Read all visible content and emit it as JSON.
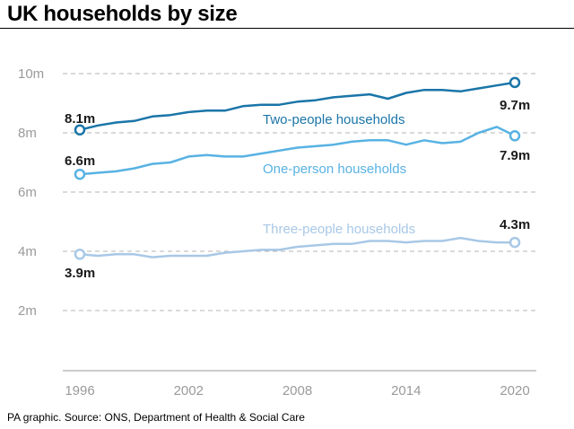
{
  "title": "UK households by size",
  "source": "PA graphic. Source: ONS, Department of Health & Social Care",
  "chart_data": {
    "type": "line",
    "title": "UK households by size",
    "xlabel": "",
    "ylabel": "",
    "xlim": [
      1996,
      2020
    ],
    "ylim": [
      0,
      10
    ],
    "x_ticks": [
      "1996",
      "2002",
      "2008",
      "2014",
      "2020"
    ],
    "y_ticks": [
      "10m",
      "8m",
      "6m",
      "4m",
      "2m"
    ],
    "grid": true,
    "x": [
      1996,
      1997,
      1998,
      1999,
      2000,
      2001,
      2002,
      2003,
      2004,
      2005,
      2006,
      2007,
      2008,
      2009,
      2010,
      2011,
      2012,
      2013,
      2014,
      2015,
      2016,
      2017,
      2018,
      2019,
      2020
    ],
    "series": [
      {
        "name": "Two-people households",
        "color": "#1a75a8",
        "values": [
          8.1,
          8.25,
          8.35,
          8.4,
          8.55,
          8.6,
          8.7,
          8.75,
          8.75,
          8.9,
          8.95,
          8.95,
          9.05,
          9.1,
          9.2,
          9.25,
          9.3,
          9.15,
          9.35,
          9.45,
          9.45,
          9.4,
          9.5,
          9.6,
          9.7
        ],
        "start_label": "8.1m",
        "end_label": "9.7m"
      },
      {
        "name": "One-person households",
        "color": "#58b2e3",
        "values": [
          6.6,
          6.65,
          6.7,
          6.8,
          6.95,
          7.0,
          7.2,
          7.25,
          7.2,
          7.2,
          7.3,
          7.4,
          7.5,
          7.55,
          7.6,
          7.7,
          7.75,
          7.75,
          7.6,
          7.75,
          7.65,
          7.7,
          8.0,
          8.2,
          7.9
        ],
        "start_label": "6.6m",
        "end_label": "7.9m"
      },
      {
        "name": "Three-people households",
        "color": "#a8c8e6",
        "values": [
          3.9,
          3.85,
          3.9,
          3.9,
          3.8,
          3.85,
          3.85,
          3.85,
          3.95,
          4.0,
          4.05,
          4.05,
          4.15,
          4.2,
          4.25,
          4.25,
          4.35,
          4.35,
          4.3,
          4.35,
          4.35,
          4.45,
          4.35,
          4.3,
          4.3
        ],
        "start_label": "3.9m",
        "end_label": "4.3m"
      }
    ]
  }
}
